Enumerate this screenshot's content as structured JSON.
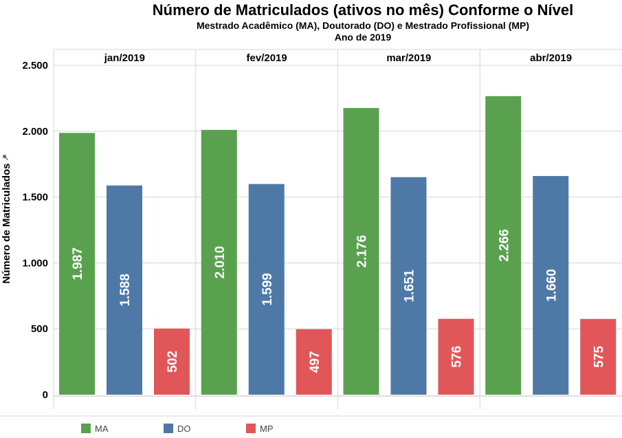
{
  "chart_data": {
    "type": "bar",
    "title": "Número de Matriculados (ativos no mês) Conforme o Nível",
    "subtitle": "Mestrado Acadêmico (MA), Doutorado (DO) e Mestrado Profissional (MP)",
    "subtitle2": "Ano de 2019",
    "xlabel": "",
    "ylabel": "Número de Matriculados",
    "ylim": [
      0,
      2500
    ],
    "yticks": [
      0,
      500,
      1000,
      1500,
      2000,
      2500
    ],
    "ytick_labels": [
      "0",
      "500",
      "1.000",
      "1.500",
      "2.000",
      "2.500"
    ],
    "grid": true,
    "legend_position": "bottom",
    "categories": [
      "jan/2019",
      "fev/2019",
      "mar/2019",
      "abr/2019"
    ],
    "series": [
      {
        "name": "MA",
        "color": "#59a14f",
        "values": [
          1987,
          2010,
          2176,
          2266
        ],
        "labels": [
          "1.987",
          "2.010",
          "2.176",
          "2.266"
        ]
      },
      {
        "name": "DO",
        "color": "#4e79a7",
        "values": [
          1588,
          1599,
          1651,
          1660
        ],
        "labels": [
          "1.588",
          "1.599",
          "1.651",
          "1.660"
        ]
      },
      {
        "name": "MP",
        "color": "#e15759",
        "values": [
          502,
          497,
          576,
          575
        ],
        "labels": [
          "502",
          "497",
          "576",
          "575"
        ]
      }
    ]
  }
}
